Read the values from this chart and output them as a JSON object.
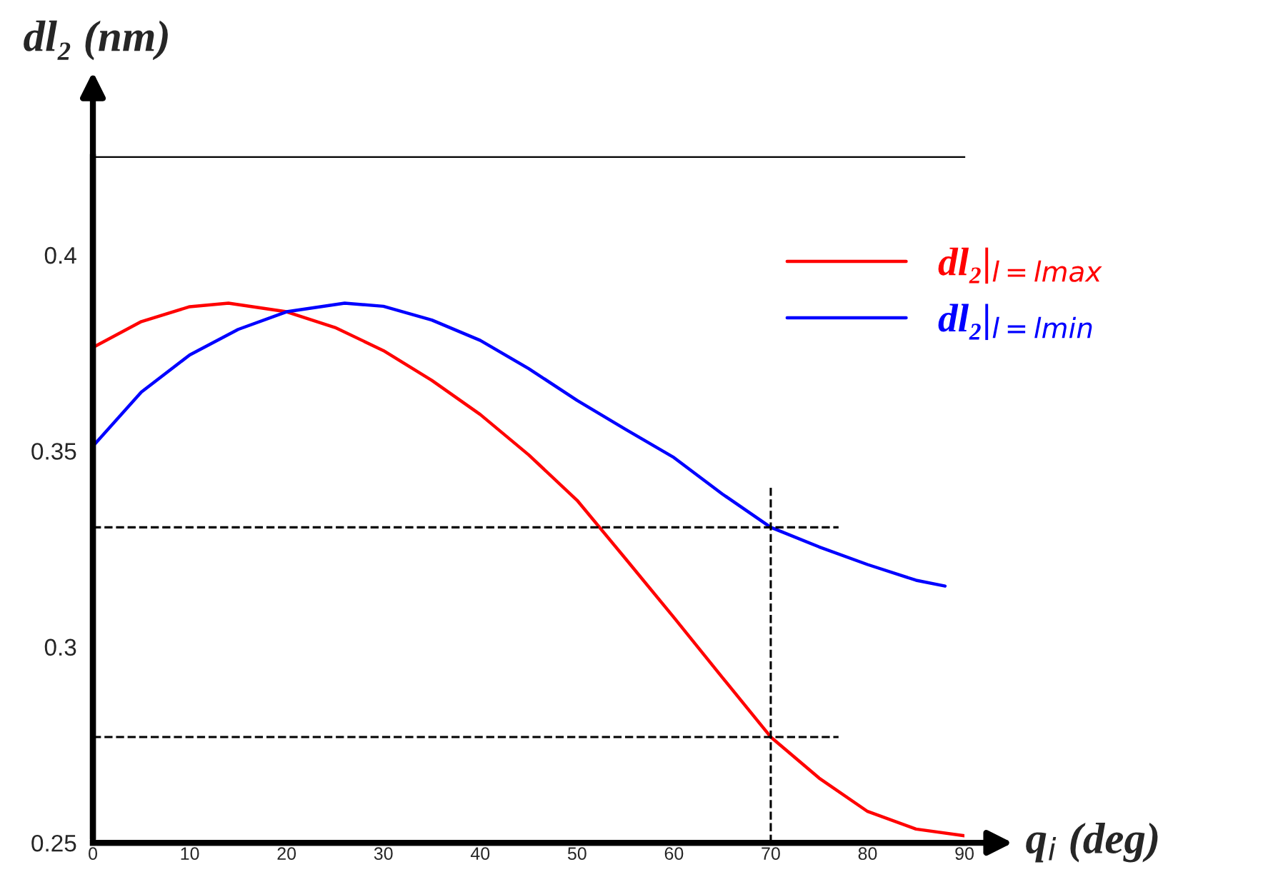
{
  "chart_data": {
    "type": "line",
    "xlabel": "q$_{i}$ (deg)",
    "ylabel": "dl₂ (nm)",
    "xlim": [
      0,
      90
    ],
    "ylim": [
      0.25,
      0.425
    ],
    "xticks": [
      0,
      10,
      20,
      30,
      40,
      50,
      60,
      70,
      80,
      90
    ],
    "yticks": [
      0.25,
      0.3,
      0.35,
      0.4
    ],
    "grid": false,
    "legend": "top right",
    "marker": "none",
    "line_style": "solid",
    "series": [
      {
        "name": "dl₂|$_{l=lmax}$",
        "color": "#ff0000",
        "x": [
          0,
          5,
          10,
          14,
          20,
          25,
          30,
          35,
          40,
          45,
          50,
          55,
          60,
          65,
          70,
          75,
          80,
          85,
          90
        ],
        "values": [
          0.3764,
          0.383,
          0.3868,
          0.3877,
          0.3855,
          0.3815,
          0.3756,
          0.368,
          0.3593,
          0.349,
          0.3374,
          0.3225,
          0.3075,
          0.2922,
          0.277,
          0.2665,
          0.258,
          0.2535,
          0.2518
        ]
      },
      {
        "name": "dl₂|$_{l=lmin}$",
        "color": "#0000ff",
        "x": [
          0,
          5,
          10,
          15,
          20,
          26,
          30,
          35,
          40,
          45,
          50,
          55,
          60,
          65,
          70,
          75,
          80,
          85,
          88
        ],
        "values": [
          0.3512,
          0.365,
          0.3745,
          0.381,
          0.3855,
          0.3877,
          0.3869,
          0.3834,
          0.3782,
          0.371,
          0.3629,
          0.3555,
          0.3483,
          0.339,
          0.3305,
          0.3255,
          0.321,
          0.317,
          0.3155
        ]
      },
      {
        "color": "#000000",
        "line_style": "dashed",
        "x": [
          0,
          77
        ],
        "values": [
          0.3305,
          0.3305
        ]
      },
      {
        "color": "#000000",
        "line_style": "dashed",
        "x": [
          0,
          77
        ],
        "values": [
          0.277,
          0.277
        ]
      },
      {
        "color": "#000000",
        "line_style": "dashed",
        "x": [
          70,
          70
        ],
        "values": [
          0.25,
          0.341
        ]
      }
    ]
  }
}
